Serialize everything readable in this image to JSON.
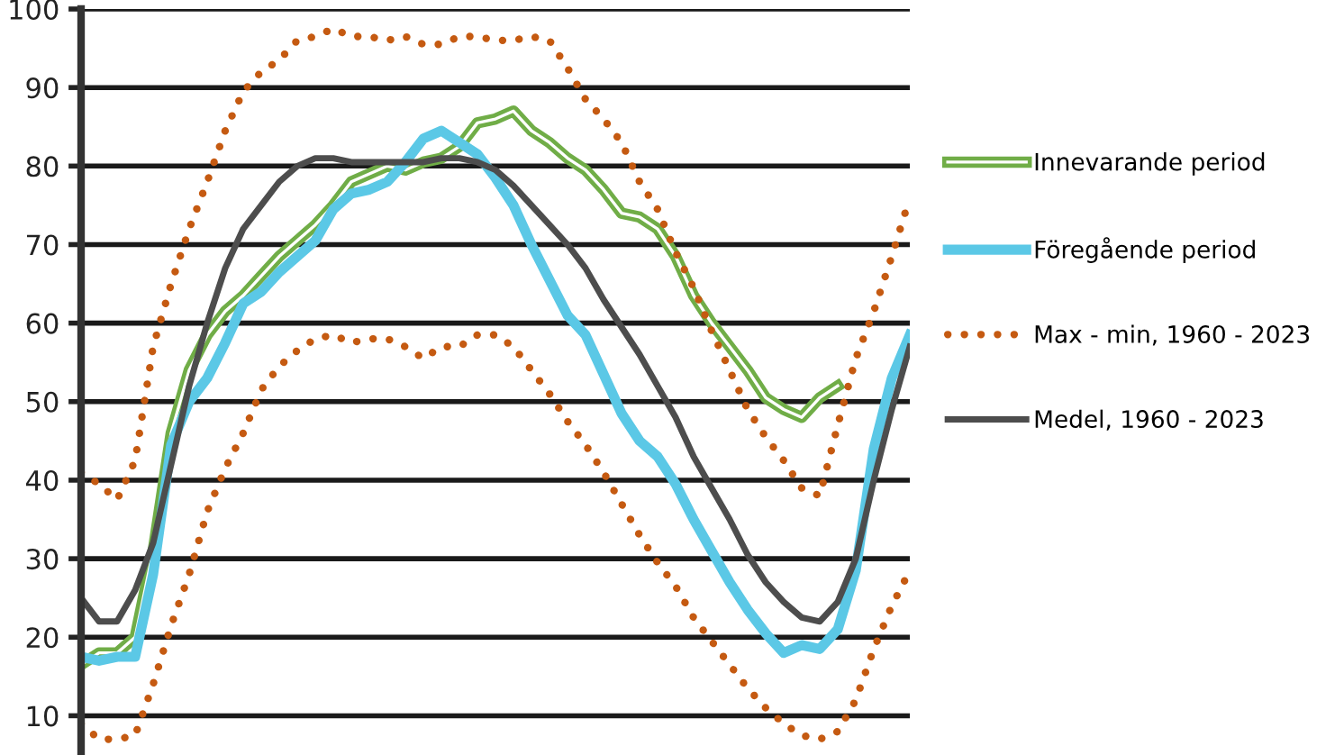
{
  "chart_data": {
    "type": "line",
    "categories": [
      null,
      null,
      null,
      null,
      null,
      null,
      null,
      null,
      null,
      null,
      null,
      null,
      null,
      null,
      null,
      null,
      null,
      null,
      null,
      null,
      null,
      null,
      null,
      null,
      null,
      null,
      null,
      null,
      null,
      null,
      null,
      null,
      null,
      null,
      null,
      null,
      null,
      null,
      null,
      null,
      null,
      null,
      null,
      null,
      null,
      null,
      null
    ],
    "ylim": [
      5,
      100
    ],
    "yticks": [
      10,
      20,
      30,
      40,
      50,
      60,
      70,
      80,
      90,
      100
    ],
    "grid": "y",
    "legend": "right",
    "tick_labels": "y",
    "series": [
      {
        "name": "Innevarande period",
        "color": "#70ad47",
        "line_style": "solid",
        "values": [
          16.5,
          18,
          18,
          20,
          31,
          46,
          54,
          58.5,
          61.5,
          63.5,
          66,
          68.5,
          70.5,
          72.5,
          75,
          78,
          79,
          80,
          79.5,
          80.5,
          81,
          82.5,
          85.5,
          86,
          87,
          84.5,
          83,
          81,
          79.5,
          77,
          74,
          73.5,
          72,
          68.5,
          63.5,
          60,
          57,
          54,
          50.5,
          49,
          48,
          50.5,
          52,
          null,
          null,
          null,
          null
        ]
      },
      {
        "name": "Föregående period",
        "color": "#5bc8e6",
        "line_style": "solid",
        "values": [
          17.5,
          17,
          17.5,
          17.5,
          28,
          44.5,
          50,
          53,
          57.5,
          62.5,
          64,
          66.5,
          68.5,
          70.5,
          74.5,
          76.5,
          77,
          78,
          80.5,
          83.5,
          84.5,
          83,
          81.5,
          78.5,
          75,
          70,
          65.5,
          61,
          58.5,
          53.5,
          48.5,
          45,
          43,
          39.5,
          35,
          31,
          27,
          23.5,
          20.5,
          18,
          19,
          18.5,
          21,
          28.5,
          44,
          53,
          58.5
        ]
      },
      {
        "name": "Max - min, 1960 - 2023",
        "color": "#c55a11",
        "line_style": "dotted",
        "values": [
          41,
          39.5,
          37.5,
          42.5,
          57,
          65,
          72,
          78,
          84.5,
          89.5,
          92,
          93.5,
          96,
          96.5,
          97.5,
          96.5,
          96.5,
          96,
          96.5,
          95.5,
          95.5,
          96.5,
          96.5,
          96,
          96,
          96.5,
          96,
          92.5,
          88.5,
          86,
          83,
          78,
          74.5,
          69,
          64.5,
          59,
          54,
          49,
          45.5,
          42.5,
          39,
          38,
          47,
          55.5,
          61.5,
          68.5,
          76
        ]
      },
      {
        "color": "#c55a11",
        "line_style": "dotted",
        "values": [
          9,
          7,
          7,
          7.5,
          14,
          21.5,
          28,
          36,
          41.5,
          46,
          51.5,
          54.5,
          56.5,
          58,
          58.5,
          57.5,
          58,
          58,
          57,
          55.5,
          57,
          57,
          58.5,
          58.5,
          57,
          54,
          51,
          47.5,
          44.5,
          41,
          37,
          33,
          29.5,
          26.5,
          22.5,
          19.5,
          16.5,
          13.5,
          11,
          9,
          7.5,
          7,
          8,
          12,
          18.5,
          24,
          28.5
        ]
      },
      {
        "name": "Medel, 1960 - 2023",
        "color": "#4d4d4d",
        "line_style": "solid",
        "values": [
          25,
          22,
          22,
          26,
          32,
          42,
          52,
          60,
          67,
          72,
          75,
          78,
          80,
          81,
          81,
          80.5,
          80.5,
          80.5,
          80.5,
          80.5,
          81,
          81,
          80.5,
          79.5,
          77.5,
          75,
          72.5,
          70,
          67,
          63,
          59.5,
          56,
          52,
          48,
          43,
          39,
          35,
          30.5,
          27,
          24.5,
          22.5,
          22,
          24.5,
          30,
          40,
          49,
          57
        ]
      }
    ]
  }
}
